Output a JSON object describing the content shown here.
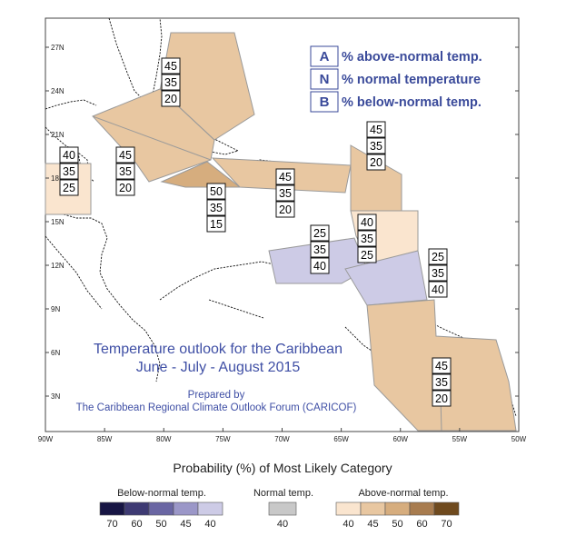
{
  "map": {
    "x_ticks": [
      "90W",
      "85W",
      "80W",
      "75W",
      "70W",
      "65W",
      "60W",
      "55W",
      "50W"
    ],
    "y_ticks": [
      "27N",
      "24N",
      "21N",
      "18N",
      "15N",
      "12N",
      "9N",
      "6N",
      "3N"
    ],
    "regions": [
      {
        "id": "bahamas",
        "category": "above",
        "values": [
          "45",
          "35",
          "20"
        ],
        "fill": "#e8c7a1"
      },
      {
        "id": "cuba",
        "category": "above",
        "values": [
          "45",
          "35",
          "20"
        ],
        "fill": "#e8c7a1"
      },
      {
        "id": "jamaica",
        "category": "above",
        "values": [
          "50",
          "35",
          "15"
        ],
        "fill": "#d6ad7e"
      },
      {
        "id": "belize",
        "category": "above",
        "values": [
          "40",
          "35",
          "25"
        ],
        "fill": "#fae5cf"
      },
      {
        "id": "hispaniola",
        "category": "above",
        "values": [
          "45",
          "35",
          "20"
        ],
        "fill": "#e8c7a1"
      },
      {
        "id": "leeward",
        "category": "above",
        "values": [
          "45",
          "35",
          "20"
        ],
        "fill": "#e8c7a1"
      },
      {
        "id": "windward",
        "category": "above",
        "values": [
          "40",
          "35",
          "25"
        ],
        "fill": "#fae5cf"
      },
      {
        "id": "abc-islands",
        "category": "below",
        "values": [
          "25",
          "35",
          "40"
        ],
        "fill": "#cdcbe6"
      },
      {
        "id": "trinidad",
        "category": "below",
        "values": [
          "25",
          "35",
          "40"
        ],
        "fill": "#cdcbe6"
      },
      {
        "id": "guianas",
        "category": "above",
        "values": [
          "45",
          "35",
          "20"
        ],
        "fill": "#e8c7a1"
      }
    ]
  },
  "legend": {
    "items": [
      {
        "letter": "A",
        "text": "% above-normal temp."
      },
      {
        "letter": "N",
        "text": "% normal temperature"
      },
      {
        "letter": "B",
        "text": "% below-normal temp."
      }
    ]
  },
  "title": {
    "line1": "Temperature outlook for the Caribbean",
    "line2": "June - July - August 2015",
    "prepared": "Prepared by",
    "org": "The Caribbean Regional Climate Outlook Forum (CARICOF)"
  },
  "colorbar": {
    "title": "Probability (%) of Most Likely Category",
    "below": {
      "label": "Below-normal temp.",
      "colors": [
        "#171544",
        "#3e3a73",
        "#6a66a3",
        "#9b97c8",
        "#cdcbe6"
      ],
      "values": [
        "70",
        "60",
        "50",
        "45",
        "40"
      ]
    },
    "normal": {
      "label": "Normal temp.",
      "colors": [
        "#c8c8c8"
      ],
      "values": [
        "40"
      ]
    },
    "above": {
      "label": "Above-normal temp.",
      "colors": [
        "#fae5cf",
        "#e8c7a1",
        "#d6ad7e",
        "#a87c4f",
        "#6f4a1e"
      ],
      "values": [
        "40",
        "45",
        "50",
        "60",
        "70"
      ]
    }
  }
}
